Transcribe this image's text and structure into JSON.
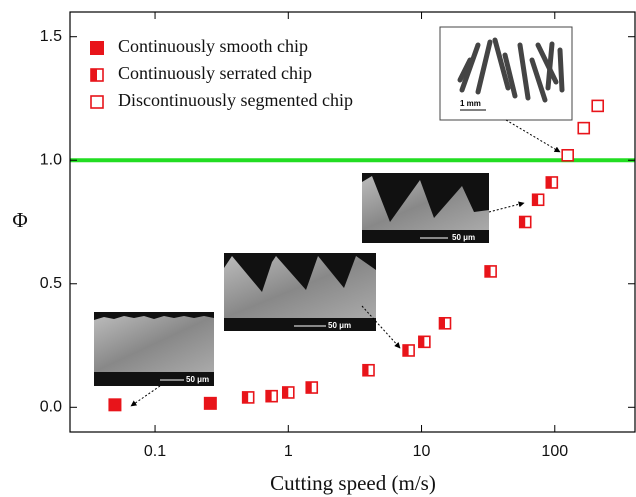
{
  "chart_data": {
    "type": "scatter",
    "xlabel": "Cutting speed (m/s)",
    "ylabel": "Φ",
    "xscale": "log",
    "xlim": [
      0.023,
      400
    ],
    "ylim": [
      -0.1,
      1.6
    ],
    "xticks": [
      0.1,
      1,
      10,
      100
    ],
    "yticks": [
      {
        "value": 0,
        "label": "0.0"
      },
      0.5,
      {
        "value": 1,
        "label": "1.0"
      },
      1.5
    ],
    "hline": {
      "value": 1,
      "color": "#22dd22"
    },
    "legend": "upper left",
    "series": [
      {
        "name": "Continuously smooth chip",
        "color": "#e8141a",
        "marker": "filled",
        "x": [
          0.05,
          0.26
        ],
        "values": [
          0.01,
          0.016
        ]
      },
      {
        "name": "Continuously serrated chip",
        "color": "#e8141a",
        "marker": "half",
        "x": [
          0.5,
          0.75,
          1.0,
          1.5,
          4,
          8,
          10.5,
          15,
          33,
          60,
          75,
          95
        ],
        "values": [
          0.04,
          0.045,
          0.06,
          0.08,
          0.15,
          0.23,
          0.265,
          0.34,
          0.55,
          0.75,
          0.84,
          0.91
        ]
      },
      {
        "name": "Discontinuously segmented chip",
        "color": "#e8141a",
        "marker": "open",
        "x": [
          125,
          165,
          210
        ],
        "values": [
          1.02,
          1.13,
          1.22
        ]
      }
    ],
    "insets": [
      {
        "scale_bar": "50 μm"
      },
      {
        "scale_bar": "50 μm"
      },
      {
        "scale_bar": "50 μm"
      },
      {
        "scale_bar": "1 mm"
      }
    ]
  }
}
